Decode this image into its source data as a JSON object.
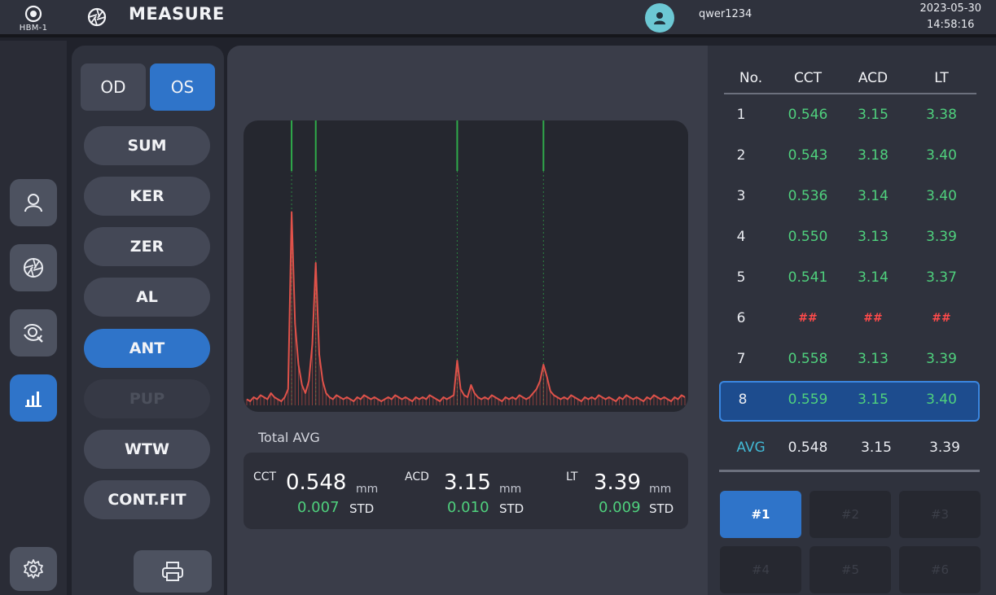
{
  "device": {
    "label": "HBM-1",
    "icon": "target-icon"
  },
  "header": {
    "title": "MEASURE",
    "user": "qwer1234",
    "date": "2023-05-30",
    "time": "14:58:16"
  },
  "rail": {
    "items": [
      {
        "name": "patient",
        "icon": "user-icon",
        "active": false
      },
      {
        "name": "measure",
        "icon": "aperture-icon",
        "active": false
      },
      {
        "name": "eye-scan",
        "icon": "eye-scan-icon",
        "active": false
      },
      {
        "name": "report",
        "icon": "bar-chart-icon",
        "active": true
      },
      {
        "name": "settings",
        "icon": "gear-icon",
        "active": false
      }
    ]
  },
  "eye": {
    "od": "OD",
    "os": "OS",
    "selected": "OS"
  },
  "modes": {
    "items": [
      "SUM",
      "KER",
      "ZER",
      "AL",
      "ANT",
      "PUP",
      "WTW",
      "CONT.FIT"
    ],
    "active": "ANT",
    "disabled": [
      "PUP"
    ]
  },
  "summary": {
    "title": "Total AVG",
    "cct": {
      "label": "CCT",
      "value": "0.548",
      "unit": "mm",
      "std": "0.007",
      "std_label": "STD"
    },
    "acd": {
      "label": "ACD",
      "value": "3.15",
      "unit": "mm",
      "std": "0.010",
      "std_label": "STD"
    },
    "lt": {
      "label": "LT",
      "value": "3.39",
      "unit": "mm",
      "std": "0.009",
      "std_label": "STD"
    }
  },
  "table": {
    "headers": [
      "No.",
      "CCT",
      "ACD",
      "LT"
    ],
    "rows": [
      [
        "1",
        "0.546",
        "3.15",
        "3.38"
      ],
      [
        "2",
        "0.543",
        "3.18",
        "3.40"
      ],
      [
        "3",
        "0.536",
        "3.14",
        "3.40"
      ],
      [
        "4",
        "0.550",
        "3.13",
        "3.39"
      ],
      [
        "5",
        "0.541",
        "3.14",
        "3.37"
      ],
      [
        "6",
        "##",
        "##",
        "##"
      ],
      [
        "7",
        "0.558",
        "3.13",
        "3.39"
      ],
      [
        "8",
        "0.559",
        "3.15",
        "3.40"
      ]
    ],
    "selected_row": "8",
    "avg": [
      "AVG",
      "0.548",
      "3.15",
      "3.39"
    ]
  },
  "slots": {
    "items": [
      "#1",
      "#2",
      "#3",
      "#4",
      "#5",
      "#6"
    ],
    "active": "#1"
  },
  "colors": {
    "accent": "#2f74c9",
    "ok": "#4fd07d",
    "error": "#ff4a4a",
    "waveform": "#e0524a",
    "marker": "#2faa4a"
  },
  "chart_data": {
    "type": "line",
    "title": "",
    "xlabel": "",
    "ylabel": "",
    "markers": [
      "CCT anterior",
      "CCT posterior",
      "lens anterior",
      "lens posterior"
    ],
    "series": [
      {
        "values": [
          3,
          2,
          4,
          3,
          5,
          4,
          3,
          6,
          4,
          3,
          2,
          4,
          8,
          95,
          40,
          20,
          10,
          6,
          12,
          30,
          70,
          25,
          12,
          6,
          4,
          3,
          5,
          4,
          3,
          4,
          3,
          2,
          4,
          3,
          5,
          4,
          3,
          4,
          3,
          2,
          3,
          4,
          3,
          5,
          4,
          3,
          4,
          3,
          2,
          4,
          3,
          4,
          3,
          5,
          4,
          3,
          2,
          4,
          3,
          4,
          5,
          22,
          8,
          5,
          4,
          10,
          6,
          4,
          3,
          4,
          3,
          5,
          4,
          3,
          2,
          4,
          3,
          4,
          3,
          5,
          4,
          3,
          4,
          6,
          8,
          12,
          20,
          14,
          7,
          5,
          4,
          3,
          4,
          3,
          5,
          4,
          3,
          2,
          4,
          3,
          4,
          3,
          5,
          4,
          3,
          4,
          3,
          2,
          4,
          3,
          5,
          4,
          3,
          4,
          3,
          2,
          4,
          3,
          5,
          4,
          3,
          4,
          3,
          2,
          4,
          3,
          5,
          4
        ]
      }
    ]
  }
}
